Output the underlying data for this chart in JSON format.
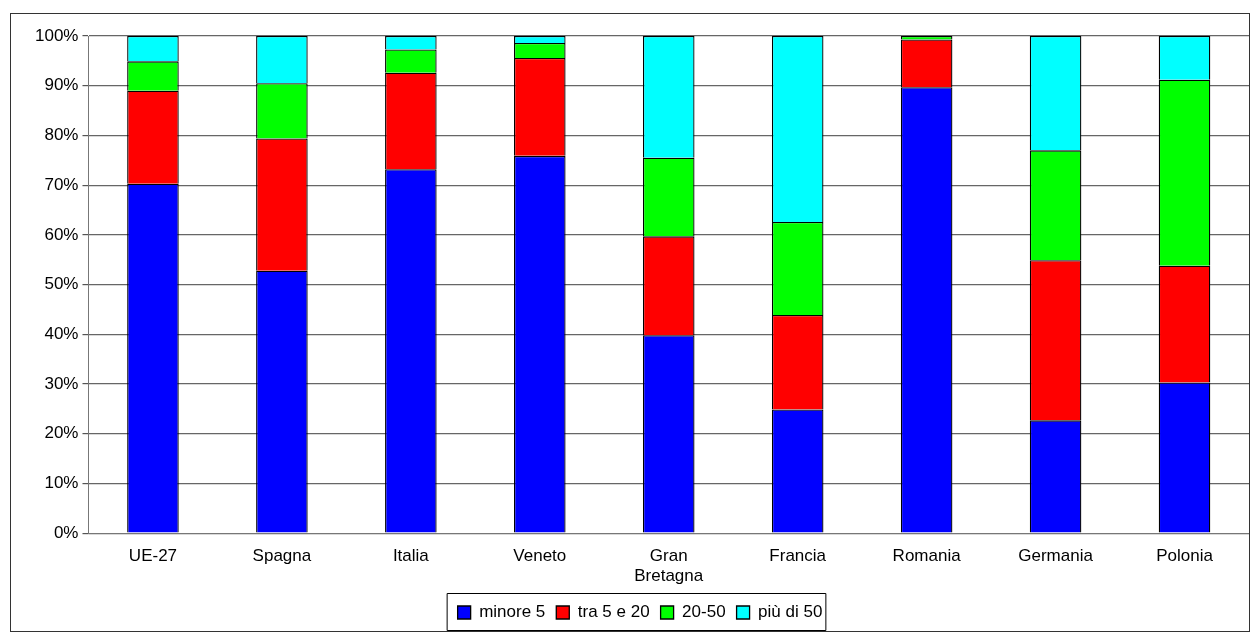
{
  "chart_data": {
    "type": "bar",
    "stacked": true,
    "categories": [
      "UE-27",
      "Spagna",
      "Italia",
      "Veneto",
      "Gran Bretagna",
      "Francia",
      "Romania",
      "Germania",
      "Polonia"
    ],
    "series": [
      {
        "name": "minore 5",
        "color": "#0000ff",
        "values": [
          70.3,
          52.8,
          73.2,
          75.9,
          39.8,
          24.9,
          89.7,
          22.7,
          30.3
        ]
      },
      {
        "name": "tra 5 e 20",
        "color": "#ff0000",
        "values": [
          18.7,
          26.6,
          19.4,
          19.7,
          19.9,
          19.0,
          9.6,
          32.2,
          23.5
        ]
      },
      {
        "name": "20-50",
        "color": "#00ff00",
        "values": [
          5.9,
          11.1,
          4.7,
          3.0,
          15.8,
          18.7,
          0.7,
          22.1,
          37.4
        ]
      },
      {
        "name": "più di 50",
        "color": "#00ffff",
        "values": [
          5.1,
          9.5,
          2.7,
          1.4,
          24.5,
          37.4,
          null,
          23.0,
          8.8
        ]
      }
    ],
    "ylim": [
      0,
      100
    ],
    "yticks": [
      {
        "value": 0,
        "label": "0%"
      },
      {
        "value": 10,
        "label": "10%"
      },
      {
        "value": 20,
        "label": "20%"
      },
      {
        "value": 30,
        "label": "30%"
      },
      {
        "value": 40,
        "label": "40%"
      },
      {
        "value": 50,
        "label": "50%"
      },
      {
        "value": 60,
        "label": "60%"
      },
      {
        "value": 70,
        "label": "70%"
      },
      {
        "value": 80,
        "label": "80%"
      },
      {
        "value": 90,
        "label": "90%"
      },
      {
        "value": 100,
        "label": "100%"
      }
    ],
    "grid": "y",
    "legend": "bottom"
  }
}
